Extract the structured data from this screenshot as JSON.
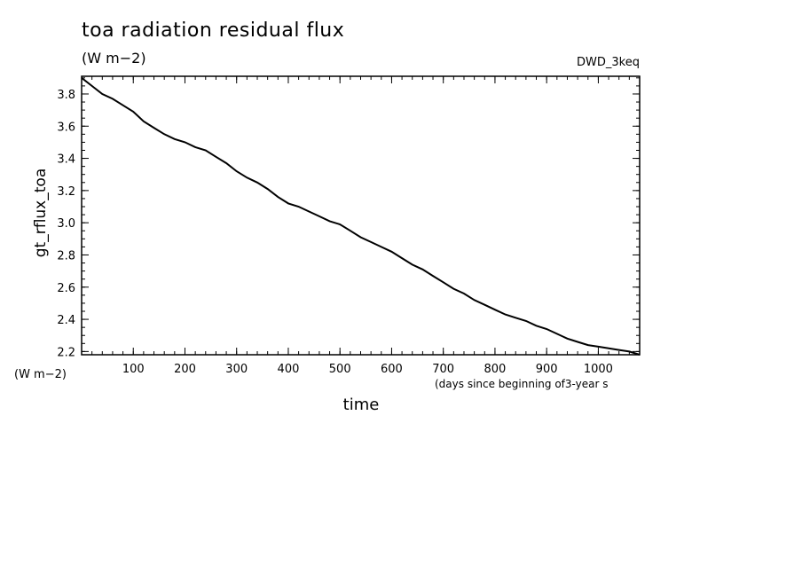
{
  "title": "toa radiation residual flux",
  "units_top": "(W m−2)",
  "dataset": "DWD_3keq",
  "units_bottom": "(W m−2)",
  "colors": {
    "line": "#000000",
    "background": "#ffffff"
  },
  "chart_data": {
    "type": "line",
    "title": "toa radiation residual flux",
    "xlabel": "time",
    "xlabel_units": "(days since beginning of3-year s",
    "ylabel": "gt_rflux_toa",
    "xlim": [
      0,
      1080
    ],
    "ylim": [
      2.18,
      3.91
    ],
    "x_ticks": [
      100,
      200,
      300,
      400,
      500,
      600,
      700,
      800,
      900,
      1000
    ],
    "y_ticks": [
      2.2,
      2.4,
      2.6,
      2.8,
      3.0,
      3.2,
      3.4,
      3.6,
      3.8
    ],
    "y_tick_labels": [
      "2.2",
      "2.4",
      "2.6",
      "2.8",
      "3.0",
      "3.2",
      "3.4",
      "3.6",
      "3.8"
    ],
    "grid": false,
    "series": [
      {
        "x": [
          0,
          20,
          40,
          60,
          80,
          100,
          120,
          140,
          160,
          180,
          200,
          220,
          240,
          260,
          280,
          300,
          320,
          340,
          360,
          380,
          400,
          420,
          440,
          460,
          480,
          500,
          520,
          540,
          560,
          580,
          600,
          620,
          640,
          660,
          680,
          700,
          720,
          740,
          760,
          780,
          800,
          820,
          840,
          860,
          880,
          900,
          920,
          940,
          960,
          980,
          1000,
          1020,
          1040,
          1060,
          1080
        ],
        "y": [
          3.9,
          3.85,
          3.8,
          3.77,
          3.73,
          3.69,
          3.63,
          3.59,
          3.55,
          3.52,
          3.5,
          3.47,
          3.45,
          3.41,
          3.37,
          3.32,
          3.28,
          3.25,
          3.21,
          3.16,
          3.12,
          3.1,
          3.07,
          3.04,
          3.01,
          2.99,
          2.95,
          2.91,
          2.88,
          2.85,
          2.82,
          2.78,
          2.74,
          2.71,
          2.67,
          2.63,
          2.59,
          2.56,
          2.52,
          2.49,
          2.46,
          2.43,
          2.41,
          2.39,
          2.36,
          2.34,
          2.31,
          2.28,
          2.26,
          2.24,
          2.23,
          2.22,
          2.21,
          2.2,
          2.18
        ]
      }
    ]
  }
}
